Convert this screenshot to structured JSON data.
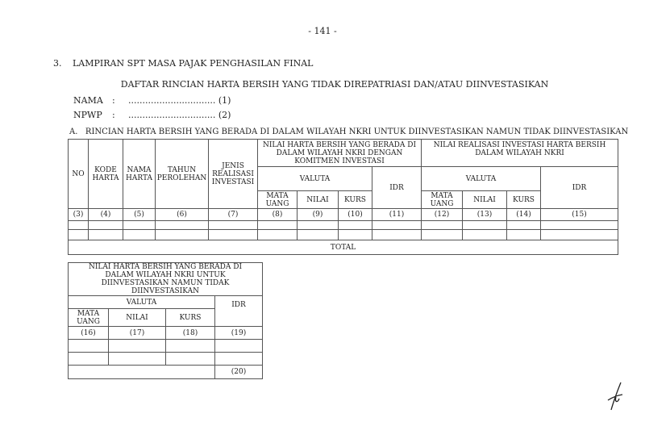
{
  "page_number": "- 141 -",
  "section": {
    "number": "3.",
    "title": "LAMPIRAN SPT MASA PAJAK PENGHASILAN FINAL"
  },
  "doc_title": "DAFTAR RINCIAN HARTA BERSIH YANG TIDAK DIREPATRIASI DAN/ATAU DIINVESTASIKAN",
  "fields": [
    {
      "label": "NAMA",
      "sep": ":",
      "value": "............................... (1)"
    },
    {
      "label": "NPWP",
      "sep": ":",
      "value": "............................... (2)"
    }
  ],
  "subsection_a": "A.   RINCIAN HARTA BERSIH YANG BERADA DI DALAM WILAYAH NKRI UNTUK DIINVESTASIKAN NAMUN TIDAK DIINVESTASIKAN",
  "table_a": {
    "headers": {
      "no": "NO",
      "kode": "KODE HARTA",
      "nama": "NAMA HARTA",
      "tahun": "TAHUN PEROLEHAN",
      "jenis": "JENIS REALISASI INVESTASI",
      "group1": "NILAI HARTA BERSIH YANG BERADA DI DALAM WILAYAH NKRI DENGAN KOMITMEN INVESTASI",
      "group2": "NILAI REALISASI INVESTASI HARTA BERSIH DALAM WILAYAH NKRI",
      "valuta": "VALUTA",
      "idr": "IDR",
      "mata_uang": "MATA UANG",
      "nilai": "NILAI",
      "kurs": "KURS"
    },
    "column_numbers": [
      "(3)",
      "(4)",
      "(5)",
      "(6)",
      "(7)",
      "(8)",
      "(9)",
      "(10)",
      "(11)",
      "(12)",
      "(13)",
      "(14)",
      "(15)"
    ],
    "total_label": "TOTAL"
  },
  "table_b": {
    "title": "NILAI HARTA BERSIH YANG BERADA DI DALAM WILAYAH NKRI UNTUK DIINVESTASIKAN NAMUN TIDAK DIINVESTASIKAN",
    "valuta": "VALUTA",
    "idr": "IDR",
    "mata_uang": "MATA UANG",
    "nilai": "NILAI",
    "kurs": "KURS",
    "column_numbers": [
      "(16)",
      "(17)",
      "(18)",
      "(19)"
    ],
    "total_value": "(20)"
  }
}
